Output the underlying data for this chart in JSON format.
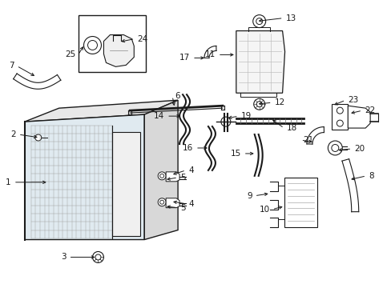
{
  "bg_color": "#ffffff",
  "line_color": "#1a1a1a",
  "label_fontsize": 7.5,
  "fig_width": 4.89,
  "fig_height": 3.6,
  "dpi": 100
}
